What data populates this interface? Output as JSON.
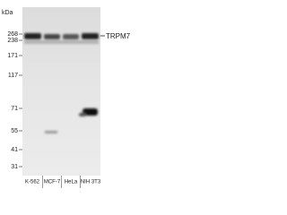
{
  "unit_label": "kDa",
  "markers": [
    268,
    238,
    171,
    117,
    71,
    55,
    41,
    31
  ],
  "band_label": "TRPM7",
  "lanes": [
    "K-562",
    "MCF-7",
    "HeLa",
    "NIH 3T3"
  ]
}
